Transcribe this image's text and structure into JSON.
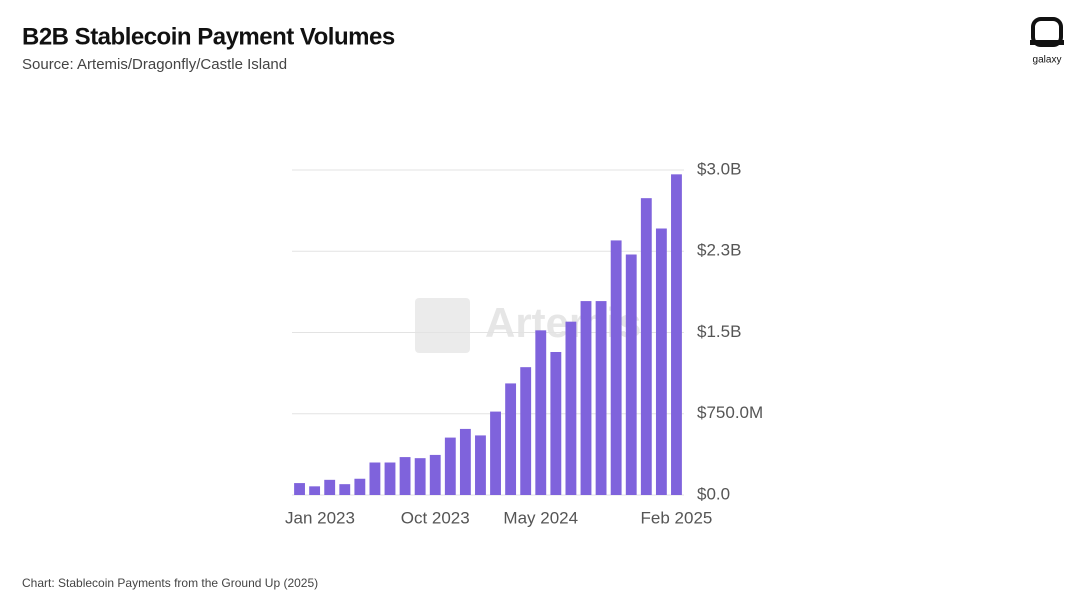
{
  "chart_data": {
    "type": "bar",
    "title": "B2B Stablecoin Payment Volumes",
    "subtitle": "Source: Artemis/Dragonfly/Castle Island",
    "note": "Chart: Stablecoin Payments from the Ground Up (2025)",
    "watermark": "Artemis",
    "logo": "galaxy",
    "categories": [
      "Jan 2023",
      null,
      null,
      null,
      null,
      null,
      null,
      null,
      null,
      "Oct 2023",
      null,
      null,
      null,
      null,
      null,
      null,
      "May 2024",
      null,
      null,
      null,
      null,
      null,
      null,
      null,
      null,
      "Feb 2025"
    ],
    "values": [
      0.11,
      0.08,
      0.14,
      0.1,
      0.15,
      0.3,
      0.3,
      0.35,
      0.34,
      0.37,
      0.53,
      0.61,
      0.55,
      0.77,
      1.03,
      1.18,
      1.52,
      1.32,
      1.6,
      1.79,
      1.79,
      2.35,
      2.22,
      2.74,
      2.46,
      2.96
    ],
    "color": "#7f63dc",
    "ylim": [
      0,
      3.0
    ],
    "yticks": [
      {
        "value": 0,
        "label": "$0.0"
      },
      {
        "value": 0.75,
        "label": "$750.0M"
      },
      {
        "value": 1.5,
        "label": "$1.5B"
      },
      {
        "value": 2.25,
        "label": "$2.3B"
      },
      {
        "value": 3.0,
        "label": "$3.0B"
      }
    ],
    "grid": true
  }
}
